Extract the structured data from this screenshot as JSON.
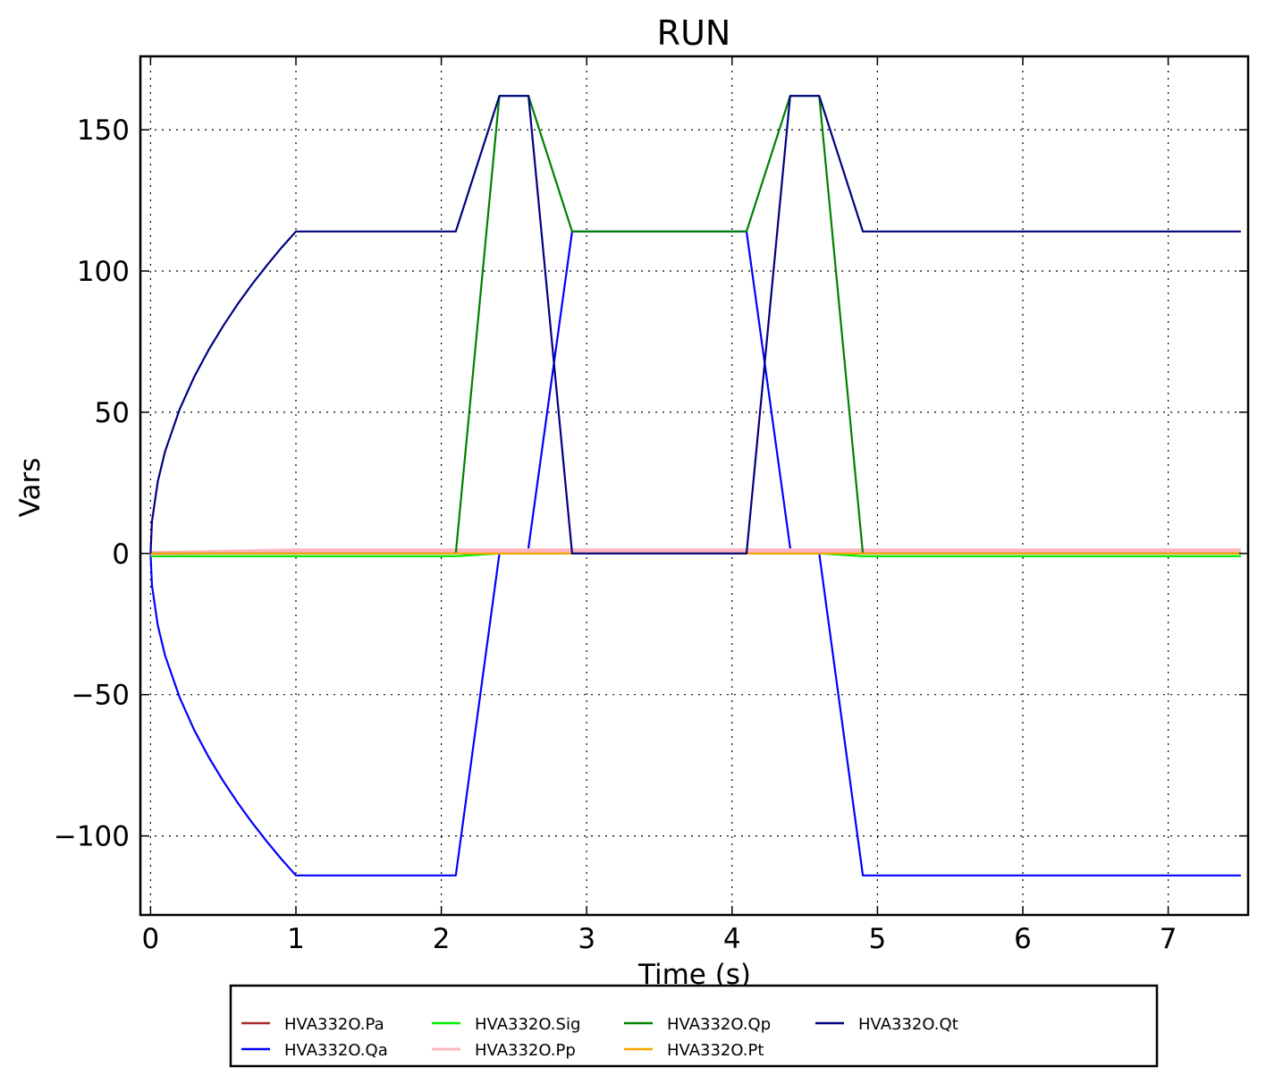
{
  "chart_data": {
    "type": "line",
    "title": "RUN",
    "xlabel": "Time (s)",
    "ylabel": "Vars",
    "xlim": [
      -0.07,
      7.55
    ],
    "ylim": [
      -128,
      176
    ],
    "xticks": [
      0,
      1,
      2,
      3,
      4,
      5,
      6,
      7
    ],
    "xtick_labels": [
      "0",
      "1",
      "2",
      "3",
      "4",
      "5",
      "6",
      "7"
    ],
    "yticks": [
      -100,
      -50,
      0,
      50,
      100,
      150
    ],
    "ytick_labels": [
      "−100",
      "−50",
      "0",
      "50",
      "100",
      "150"
    ],
    "grid": true,
    "legend_position": "bottom-center",
    "series": [
      {
        "name": "HVA332O.Pa",
        "color": "#a52a2a",
        "points": [
          [
            0,
            0
          ],
          [
            7.5,
            0
          ]
        ]
      },
      {
        "name": "HVA332O.Qa",
        "color": "#0000ff",
        "points": [
          [
            0,
            0
          ],
          [
            0.01,
            -11.4
          ],
          [
            0.05,
            -25.5
          ],
          [
            0.1,
            -36.1
          ],
          [
            0.2,
            -51
          ],
          [
            0.3,
            -62.5
          ],
          [
            0.4,
            -72.1
          ],
          [
            0.5,
            -80.6
          ],
          [
            0.6,
            -88.3
          ],
          [
            0.7,
            -95.4
          ],
          [
            0.8,
            -102
          ],
          [
            0.9,
            -108.2
          ],
          [
            1.0,
            -114
          ],
          [
            2.1,
            -114
          ],
          [
            2.4,
            0
          ],
          [
            2.6,
            0
          ],
          [
            2.6,
            2
          ],
          [
            2.9,
            114
          ],
          [
            4.1,
            114
          ],
          [
            4.4,
            2
          ],
          [
            4.4,
            0
          ],
          [
            4.6,
            0
          ],
          [
            4.9,
            -114
          ],
          [
            7.5,
            -114
          ]
        ]
      },
      {
        "name": "HVA332O.Sig",
        "color": "#00ee00",
        "points": [
          [
            0,
            -1
          ],
          [
            2.1,
            -1
          ],
          [
            2.4,
            0
          ],
          [
            4.6,
            0
          ],
          [
            4.9,
            -1
          ],
          [
            7.5,
            -1
          ]
        ]
      },
      {
        "name": "HVA332O.Pp",
        "color": "#ffb6c1",
        "points": [
          [
            0,
            0
          ],
          [
            1.0,
            1
          ],
          [
            7.5,
            1
          ]
        ]
      },
      {
        "name": "HVA332O.Qp",
        "color": "#008000",
        "points": [
          [
            0,
            0
          ],
          [
            2.1,
            0
          ],
          [
            2.4,
            162
          ],
          [
            2.6,
            162
          ],
          [
            2.9,
            114
          ],
          [
            4.1,
            114
          ],
          [
            4.4,
            162
          ],
          [
            4.6,
            162
          ],
          [
            4.9,
            0
          ],
          [
            7.5,
            0
          ]
        ]
      },
      {
        "name": "HVA332O.Pt",
        "color": "#ffa500",
        "points": [
          [
            0,
            0
          ],
          [
            2.1,
            0
          ],
          [
            2.4,
            0
          ],
          [
            7.5,
            0
          ]
        ]
      },
      {
        "name": "HVA332O.Qt",
        "color": "#000080",
        "points": [
          [
            0,
            0
          ],
          [
            0.01,
            11.4
          ],
          [
            0.05,
            25.5
          ],
          [
            0.1,
            36.1
          ],
          [
            0.2,
            51
          ],
          [
            0.3,
            62.5
          ],
          [
            0.4,
            72.1
          ],
          [
            0.5,
            80.6
          ],
          [
            0.6,
            88.3
          ],
          [
            0.7,
            95.4
          ],
          [
            0.8,
            102
          ],
          [
            0.9,
            108.2
          ],
          [
            1.0,
            114
          ],
          [
            2.1,
            114
          ],
          [
            2.4,
            162
          ],
          [
            2.6,
            162
          ],
          [
            2.9,
            0
          ],
          [
            4.1,
            0
          ],
          [
            4.4,
            162
          ],
          [
            4.6,
            162
          ],
          [
            4.9,
            114
          ],
          [
            7.5,
            114
          ]
        ]
      }
    ],
    "legend_order": [
      "HVA332O.Pa",
      "HVA332O.Qa",
      "HVA332O.Sig",
      "HVA332O.Pp",
      "HVA332O.Qp",
      "HVA332O.Pt",
      "HVA332O.Qt"
    ]
  }
}
